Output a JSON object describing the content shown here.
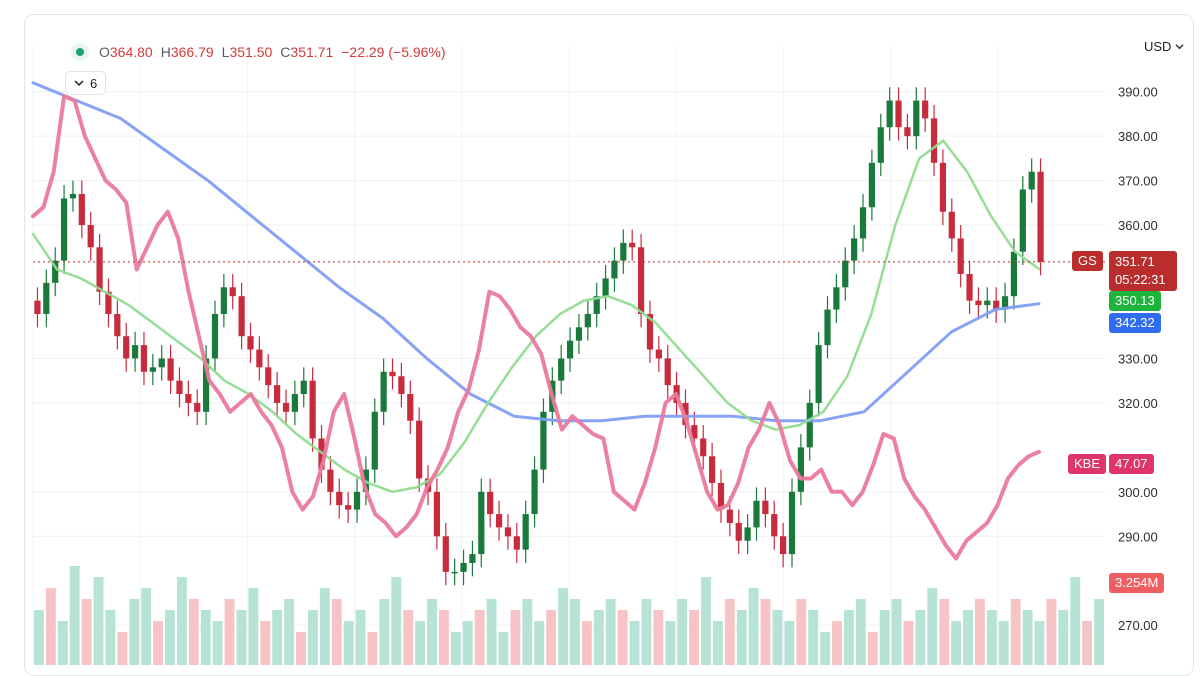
{
  "legend": {
    "ohlc": [
      {
        "k": "O",
        "v": "364.80"
      },
      {
        "k": "H",
        "v": "366.79"
      },
      {
        "k": "L",
        "v": "351.50"
      },
      {
        "k": "C",
        "v": "351.71"
      },
      {
        "k": "",
        "v": "−22.29 (−5.96%)"
      }
    ],
    "indicator_count": "6",
    "status_icon": "status-dot-icon",
    "toggle_icon": "chevron-down-icon"
  },
  "axis": {
    "currency": "USD",
    "currency_icon": "chevron-down-icon",
    "ticks": [
      "390.00",
      "380.00",
      "370.00",
      "360.00",
      "330.00",
      "320.00",
      "300.00",
      "290.00",
      "270.00"
    ]
  },
  "badges": {
    "gs_symbol": "GS",
    "gs_price": "351.71",
    "gs_timer": "05:22:31",
    "ma_fast": "350.13",
    "ma_slow": "342.32",
    "kbe_symbol": "KBE",
    "kbe_price": "47.07",
    "volume": "3.254M"
  },
  "colors": {
    "up": "#1a7a3c",
    "down": "#c62c3d",
    "kbe": "#ea7a9c",
    "ma_fast": "#8fdc8f",
    "ma_slow": "#7f9ef5",
    "last_price": "#b92d2d",
    "vol_up": "#b7e3d7",
    "vol_down": "#f6c3c6"
  },
  "chart_data": {
    "type": "line",
    "ylim": [
      266,
      396
    ],
    "last_close": 351.71,
    "grid": true,
    "series": [
      {
        "name": "GS",
        "kind": "close",
        "values": [
          340,
          347,
          352,
          366,
          367,
          360,
          355,
          345,
          340,
          335,
          330,
          333,
          327,
          328,
          330,
          325,
          322,
          320,
          318,
          330,
          340,
          346,
          344,
          335,
          332,
          328,
          324,
          320,
          318,
          322,
          325,
          312,
          305,
          300,
          297,
          296,
          300,
          305,
          318,
          327,
          326,
          322,
          316,
          303,
          300,
          290,
          282,
          282,
          284,
          286,
          300,
          295,
          292,
          290,
          287,
          295,
          305,
          318,
          325,
          330,
          334,
          337,
          340,
          344,
          348,
          352,
          356,
          355,
          340,
          332,
          330,
          324,
          320,
          315,
          312,
          308,
          302,
          296,
          293,
          289,
          292,
          298,
          295,
          290,
          286,
          300,
          310,
          320,
          333,
          341,
          346,
          352,
          357,
          364,
          374,
          382,
          388,
          382,
          380,
          388,
          384,
          374,
          363,
          357,
          349,
          343,
          342,
          343,
          341,
          344,
          354,
          368,
          372,
          351.71
        ]
      },
      {
        "name": "KBE",
        "kind": "line",
        "values": [
          362,
          364,
          372,
          389,
          388,
          380,
          375,
          370,
          368,
          365,
          350,
          355,
          360,
          363,
          357,
          345,
          335,
          325,
          322,
          318,
          320,
          322,
          318,
          315,
          310,
          300,
          296,
          299,
          307,
          318,
          322,
          312,
          301,
          295,
          293,
          290,
          292,
          295,
          301,
          305,
          310,
          318,
          323,
          332,
          345,
          344,
          341,
          337,
          335,
          331,
          322,
          314,
          317,
          315,
          313,
          312,
          300,
          298,
          296,
          302,
          310,
          320,
          322,
          316,
          308,
          300,
          296,
          297,
          302,
          310,
          314,
          320,
          315,
          307,
          303,
          303,
          305,
          300,
          300,
          297,
          300,
          306,
          313,
          312,
          303,
          299,
          296,
          292,
          288,
          285,
          289,
          291,
          293,
          297,
          303,
          306,
          308,
          309
        ]
      },
      {
        "name": "MA fast",
        "kind": "ma",
        "values": [
          358,
          350,
          348,
          345,
          342,
          338,
          334,
          330,
          325,
          322,
          318,
          313,
          309,
          305,
          302,
          300,
          301,
          304,
          311,
          320,
          328,
          335,
          340,
          343,
          344,
          342,
          338,
          332,
          326,
          320,
          316,
          314,
          315,
          318,
          326,
          340,
          360,
          375,
          379,
          372,
          362,
          354,
          350.13
        ]
      },
      {
        "name": "MA slow",
        "kind": "ma",
        "values": [
          392,
          388,
          384,
          377,
          370,
          362,
          354,
          346,
          339,
          330,
          322,
          317,
          316,
          316,
          317,
          317,
          317,
          316,
          316,
          318,
          327,
          336,
          341,
          342.32
        ]
      },
      {
        "name": "Volume",
        "kind": "volume",
        "values": [
          0.5,
          0.7,
          0.4,
          0.9,
          0.6,
          0.8,
          0.5,
          0.3,
          0.6,
          0.7,
          0.4,
          0.5,
          0.8,
          0.6,
          0.5,
          0.4,
          0.6,
          0.5,
          0.7,
          0.4,
          0.5,
          0.6,
          0.3,
          0.5,
          0.7,
          0.6,
          0.4,
          0.5,
          0.3,
          0.6,
          0.8,
          0.5,
          0.4,
          0.6,
          0.5,
          0.3,
          0.4,
          0.5,
          0.6,
          0.3,
          0.5,
          0.6,
          0.4,
          0.5,
          0.7,
          0.6,
          0.4,
          0.5,
          0.6,
          0.5,
          0.4,
          0.6,
          0.5,
          0.4,
          0.6,
          0.5,
          0.8,
          0.4,
          0.6,
          0.5,
          0.7,
          0.6,
          0.5,
          0.4,
          0.6,
          0.5,
          0.3,
          0.4,
          0.5,
          0.6,
          0.3,
          0.5,
          0.6,
          0.4,
          0.5,
          0.7,
          0.6,
          0.4,
          0.5,
          0.6,
          0.5,
          0.4,
          0.6,
          0.5,
          0.4,
          0.6,
          0.5,
          0.8,
          0.4,
          0.6
        ]
      }
    ]
  }
}
